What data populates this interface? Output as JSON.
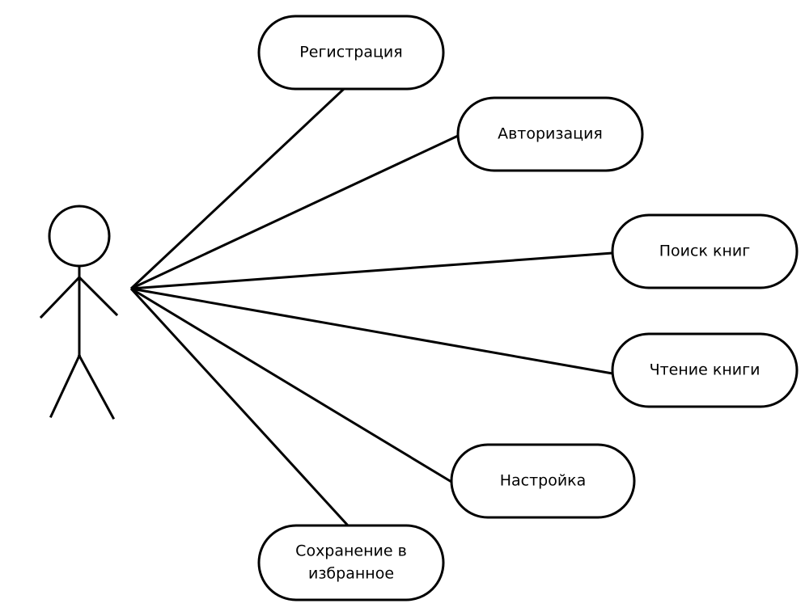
{
  "diagram": {
    "type": "use-case",
    "colors": {
      "stroke": "#000000",
      "background": "#ffffff"
    },
    "actor": {
      "label": ""
    },
    "use_cases": [
      {
        "id": "registration",
        "lines": [
          "Регистрация"
        ]
      },
      {
        "id": "authorization",
        "lines": [
          "Авторизация"
        ]
      },
      {
        "id": "book-search",
        "lines": [
          "Поиск книг"
        ]
      },
      {
        "id": "book-reading",
        "lines": [
          "Чтение книги"
        ]
      },
      {
        "id": "settings",
        "lines": [
          "Настройка"
        ]
      },
      {
        "id": "save-favorites",
        "lines": [
          "Сохранение в",
          "избранное"
        ]
      }
    ]
  }
}
